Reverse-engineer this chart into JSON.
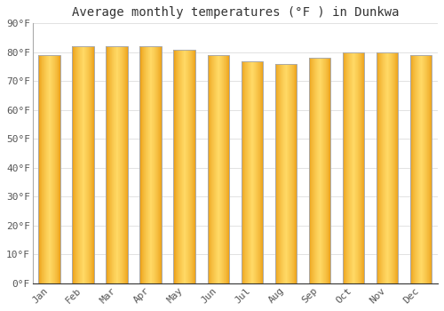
{
  "title": "Average monthly temperatures (°F ) in Dunkwa",
  "months": [
    "Jan",
    "Feb",
    "Mar",
    "Apr",
    "May",
    "Jun",
    "Jul",
    "Aug",
    "Sep",
    "Oct",
    "Nov",
    "Dec"
  ],
  "values": [
    79,
    82,
    82,
    82,
    81,
    79,
    77,
    76,
    78,
    80,
    80,
    79
  ],
  "ylim": [
    0,
    90
  ],
  "yticks": [
    0,
    10,
    20,
    30,
    40,
    50,
    60,
    70,
    80,
    90
  ],
  "ytick_labels": [
    "0°F",
    "10°F",
    "20°F",
    "30°F",
    "40°F",
    "50°F",
    "60°F",
    "70°F",
    "80°F",
    "90°F"
  ],
  "bar_color_center": "#FFD966",
  "bar_color_edge": "#E8960A",
  "bar_border_color": "#AAAAAA",
  "background_color": "#FFFFFF",
  "plot_bg_color": "#FFFFFF",
  "grid_color": "#DDDDDD",
  "title_fontsize": 10,
  "tick_fontsize": 8,
  "tick_color": "#555555",
  "title_color": "#333333",
  "title_font_family": "monospace",
  "bar_width": 0.65
}
